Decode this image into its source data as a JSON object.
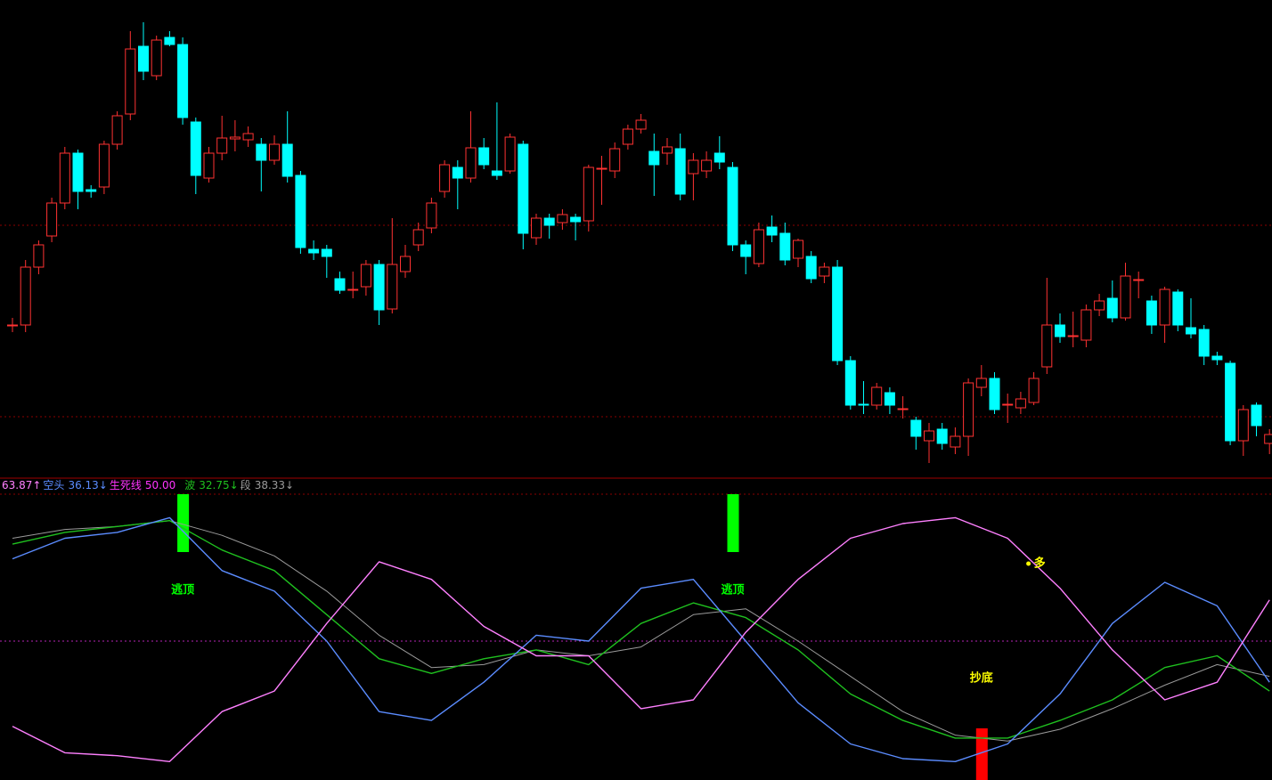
{
  "chart_data": {
    "type": "candlestick",
    "ylim": [
      0,
      540
    ],
    "up_color": "#ff3232",
    "down_color": "#00ffff",
    "candles": [
      [
        175,
        183,
        167,
        175
      ],
      [
        175,
        248,
        167,
        240
      ],
      [
        240,
        270,
        232,
        265
      ],
      [
        275,
        318,
        268,
        312
      ],
      [
        312,
        375,
        305,
        368
      ],
      [
        368,
        372,
        305,
        325
      ],
      [
        327,
        332,
        318,
        325
      ],
      [
        330,
        382,
        322,
        378
      ],
      [
        378,
        415,
        372,
        410
      ],
      [
        412,
        505,
        405,
        485
      ],
      [
        488,
        515,
        450,
        460
      ],
      [
        455,
        500,
        450,
        495
      ],
      [
        498,
        505,
        488,
        490
      ],
      [
        490,
        498,
        400,
        408
      ],
      [
        403,
        408,
        322,
        343
      ],
      [
        340,
        375,
        335,
        368
      ],
      [
        368,
        410,
        360,
        385
      ],
      [
        384,
        405,
        370,
        386
      ],
      [
        383,
        398,
        375,
        390
      ],
      [
        378,
        385,
        325,
        360
      ],
      [
        360,
        388,
        355,
        378
      ],
      [
        378,
        415,
        335,
        342
      ],
      [
        343,
        348,
        255,
        262
      ],
      [
        260,
        270,
        248,
        256
      ],
      [
        260,
        265,
        228,
        252
      ],
      [
        227,
        235,
        210,
        214
      ],
      [
        214,
        235,
        205,
        215
      ],
      [
        218,
        248,
        208,
        243
      ],
      [
        243,
        248,
        175,
        192
      ],
      [
        193,
        295,
        188,
        243
      ],
      [
        235,
        265,
        228,
        252
      ],
      [
        265,
        290,
        258,
        282
      ],
      [
        284,
        318,
        278,
        312
      ],
      [
        325,
        360,
        318,
        355
      ],
      [
        352,
        360,
        305,
        340
      ],
      [
        340,
        415,
        335,
        374
      ],
      [
        374,
        385,
        350,
        355
      ],
      [
        348,
        425,
        338,
        343
      ],
      [
        348,
        390,
        345,
        386
      ],
      [
        378,
        382,
        260,
        278
      ],
      [
        273,
        300,
        265,
        295
      ],
      [
        295,
        300,
        272,
        287
      ],
      [
        290,
        305,
        282,
        299
      ],
      [
        296,
        300,
        270,
        291
      ],
      [
        292,
        355,
        280,
        352
      ],
      [
        350,
        365,
        310,
        351
      ],
      [
        348,
        380,
        340,
        373
      ],
      [
        378,
        400,
        372,
        395
      ],
      [
        395,
        412,
        390,
        405
      ],
      [
        370,
        390,
        320,
        355
      ],
      [
        368,
        385,
        355,
        375
      ],
      [
        373,
        390,
        315,
        322
      ],
      [
        345,
        368,
        315,
        360
      ],
      [
        348,
        370,
        340,
        360
      ],
      [
        368,
        387,
        350,
        358
      ],
      [
        352,
        358,
        258,
        265
      ],
      [
        265,
        270,
        232,
        252
      ],
      [
        244,
        290,
        240,
        282
      ],
      [
        285,
        298,
        268,
        276
      ],
      [
        278,
        290,
        242,
        248
      ],
      [
        250,
        272,
        240,
        270
      ],
      [
        252,
        258,
        222,
        227
      ],
      [
        230,
        245,
        222,
        240
      ],
      [
        240,
        248,
        130,
        135
      ],
      [
        135,
        140,
        80,
        85
      ],
      [
        86,
        112,
        75,
        85
      ],
      [
        85,
        110,
        80,
        105
      ],
      [
        99,
        105,
        75,
        85
      ],
      [
        80,
        95,
        70,
        81
      ],
      [
        68,
        72,
        35,
        50
      ],
      [
        45,
        65,
        20,
        56
      ],
      [
        58,
        65,
        35,
        42
      ],
      [
        38,
        60,
        30,
        50
      ],
      [
        50,
        115,
        28,
        110
      ],
      [
        105,
        130,
        95,
        115
      ],
      [
        115,
        122,
        75,
        80
      ],
      [
        85,
        98,
        65,
        86
      ],
      [
        82,
        100,
        75,
        92
      ],
      [
        88,
        122,
        85,
        115
      ],
      [
        128,
        228,
        120,
        175
      ],
      [
        175,
        188,
        155,
        162
      ],
      [
        162,
        190,
        150,
        163
      ],
      [
        158,
        198,
        150,
        192
      ],
      [
        192,
        210,
        185,
        202
      ],
      [
        205,
        225,
        178,
        183
      ],
      [
        183,
        245,
        180,
        230
      ],
      [
        225,
        235,
        205,
        226
      ],
      [
        202,
        208,
        165,
        175
      ],
      [
        175,
        218,
        155,
        215
      ],
      [
        212,
        215,
        168,
        175
      ],
      [
        172,
        205,
        160,
        165
      ],
      [
        170,
        175,
        130,
        140
      ],
      [
        140,
        145,
        130,
        136
      ],
      [
        132,
        135,
        40,
        45
      ],
      [
        45,
        85,
        28,
        80
      ],
      [
        85,
        88,
        50,
        62
      ],
      [
        42,
        58,
        30,
        52
      ]
    ],
    "indicator": {
      "ylim": [
        0,
        100
      ],
      "x": [
        0,
        4,
        8,
        12,
        16,
        20,
        24,
        28,
        32,
        36,
        40,
        44,
        48,
        52,
        56,
        60,
        64,
        68,
        72,
        76,
        80,
        84,
        88,
        92,
        96
      ],
      "series": [
        {
          "color": "#ff80ff",
          "value_label": "63.87↑",
          "values": [
            21,
            12,
            11,
            9,
            26,
            33,
            56,
            77,
            71,
            55,
            45,
            45,
            27,
            30,
            53,
            71,
            85,
            90,
            92,
            85,
            68,
            47,
            30,
            36,
            64
          ]
        },
        {
          "name": "空头",
          "color": "#5b8cff",
          "value_label": "36.13↓",
          "values": [
            78,
            85,
            87,
            92,
            74,
            67,
            50,
            26,
            23,
            36,
            52,
            50,
            68,
            71,
            50,
            29,
            15,
            10,
            9,
            15,
            32,
            56,
            70,
            62,
            36
          ]
        },
        {
          "name": "波",
          "color": "#1fc01f",
          "value_label": "32.75↓",
          "values": [
            83,
            87,
            89,
            91,
            81,
            74,
            59,
            44,
            39,
            44,
            47,
            42,
            56,
            63,
            58,
            47,
            32,
            23,
            17,
            17,
            23,
            30,
            41,
            45,
            33
          ]
        },
        {
          "name": "段",
          "color": "#9a9a9a",
          "value_label": "38.33↓",
          "values": [
            85,
            88,
            89,
            91,
            86,
            79,
            67,
            52,
            41,
            42,
            47,
            45,
            48,
            59,
            61,
            50,
            38,
            26,
            18,
            16,
            20,
            27,
            35,
            42,
            38
          ]
        }
      ],
      "baseline": {
        "name": "生死线",
        "color": "#ff33ff",
        "value": 50,
        "value_label": "50.00"
      }
    },
    "signals": [
      {
        "index": 13,
        "label": "逃顶",
        "color": "#00ff00"
      },
      {
        "index": 55,
        "label": "逃顶",
        "color": "#00ff00"
      },
      {
        "index": 74,
        "label": "抄底",
        "color": "#ff0000"
      }
    ],
    "marker": {
      "index": 78,
      "label": "多",
      "color": "#ffff00"
    }
  }
}
